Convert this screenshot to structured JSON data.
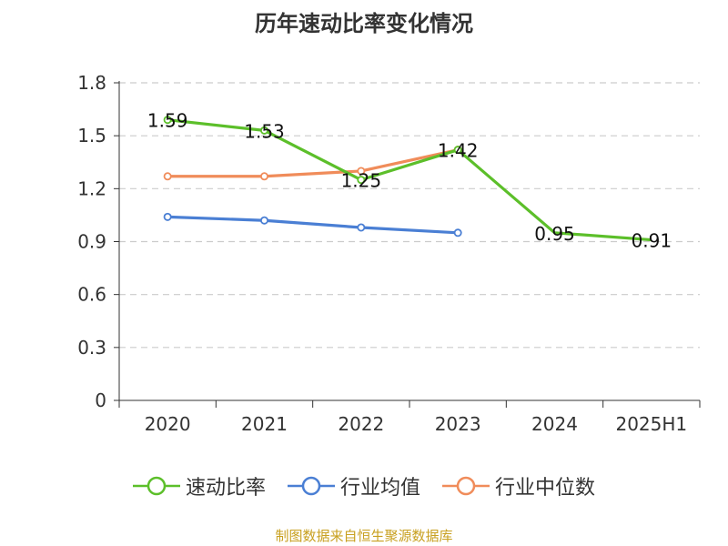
{
  "chart_data": {
    "type": "line",
    "title": "历年速动比率变化情况",
    "categories": [
      "2020",
      "2021",
      "2022",
      "2023",
      "2024",
      "2025H1"
    ],
    "yticks": [
      "0",
      "0.3",
      "0.6",
      "0.9",
      "1.2",
      "1.5",
      "1.8"
    ],
    "ylim": [
      0,
      1.8
    ],
    "grid": true,
    "legend_position": "bottom",
    "series": [
      {
        "name": "速动比率",
        "color": "#5cbf2a",
        "values": [
          1.59,
          1.53,
          1.25,
          1.42,
          0.95,
          0.91
        ],
        "labels": [
          "1.59",
          "1.53",
          "1.25",
          "1.42",
          "0.95",
          "0.91"
        ],
        "show_markers_on": [
          true,
          true,
          true,
          true,
          false,
          false
        ]
      },
      {
        "name": "行业均值",
        "color": "#4a7fd4",
        "values": [
          1.04,
          1.02,
          0.98,
          0.95,
          null,
          null
        ]
      },
      {
        "name": "行业中位数",
        "color": "#f08c5a",
        "values": [
          1.27,
          1.27,
          1.3,
          1.42,
          null,
          null
        ]
      }
    ]
  },
  "source_note": "制图数据来自恒生聚源数据库"
}
